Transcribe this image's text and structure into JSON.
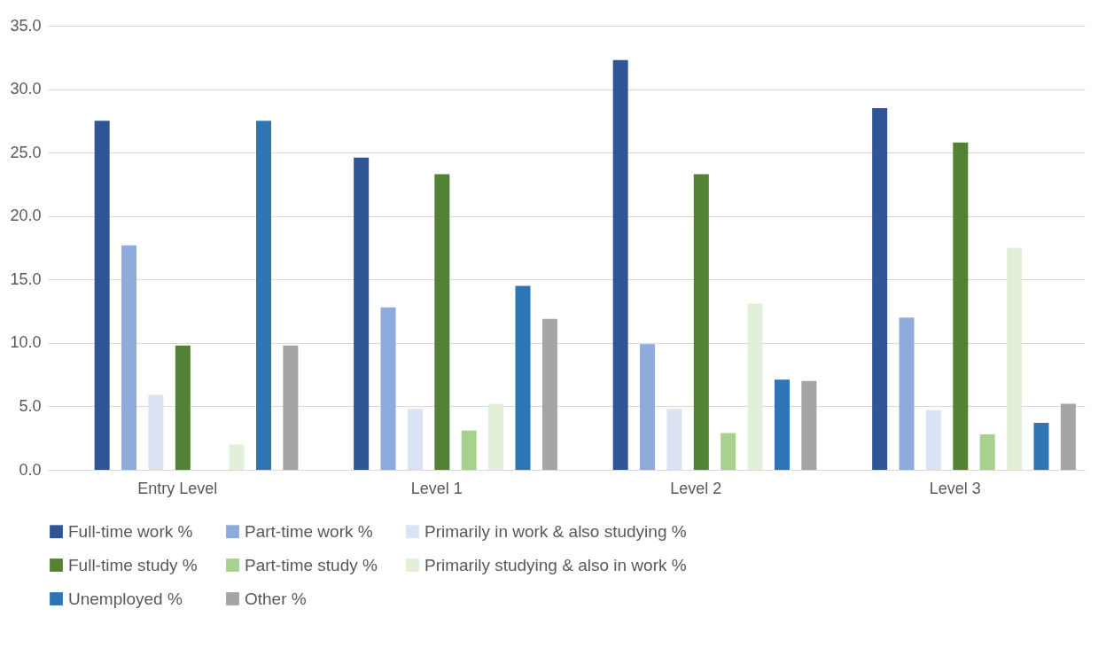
{
  "chart_data": {
    "type": "bar",
    "categories": [
      "Entry Level",
      "Level 1",
      "Level 2",
      "Level 3"
    ],
    "series": [
      {
        "name": "Full-time work %",
        "color": "#2f5597",
        "values": [
          27.5,
          24.6,
          32.3,
          28.5
        ]
      },
      {
        "name": "Part-time work %",
        "color": "#8faadc",
        "values": [
          17.7,
          12.8,
          9.9,
          12.0
        ]
      },
      {
        "name": "Primarily in work & also studying %",
        "color": "#dae3f3",
        "values": [
          5.9,
          4.8,
          4.8,
          4.7
        ]
      },
      {
        "name": "Full-time study %",
        "color": "#548235",
        "values": [
          9.8,
          23.3,
          23.3,
          25.8
        ]
      },
      {
        "name": "Part-time study %",
        "color": "#a9d18e",
        "values": [
          null,
          3.1,
          2.9,
          2.8
        ]
      },
      {
        "name": "Primarily studying & also in work %",
        "color": "#e2f0d9",
        "values": [
          2.0,
          5.2,
          13.1,
          17.5
        ]
      },
      {
        "name": "Unemployed %",
        "color": "#2e75b6",
        "values": [
          27.5,
          14.5,
          7.1,
          3.7
        ]
      },
      {
        "name": "Other %",
        "color": "#a5a5a5",
        "values": [
          9.8,
          11.9,
          7.0,
          5.2
        ]
      }
    ],
    "ylim": [
      0,
      35
    ],
    "yticks": [
      {
        "value": 0,
        "label": "0.0"
      },
      {
        "value": 5,
        "label": "5.0"
      },
      {
        "value": 10,
        "label": "10.0"
      },
      {
        "value": 15,
        "label": "15.0"
      },
      {
        "value": 20,
        "label": "20.0"
      },
      {
        "value": 25,
        "label": "25.0"
      },
      {
        "value": 30,
        "label": "30.0"
      },
      {
        "value": 35,
        "label": "35.0"
      }
    ],
    "grid": "y",
    "legend": "bottom"
  }
}
